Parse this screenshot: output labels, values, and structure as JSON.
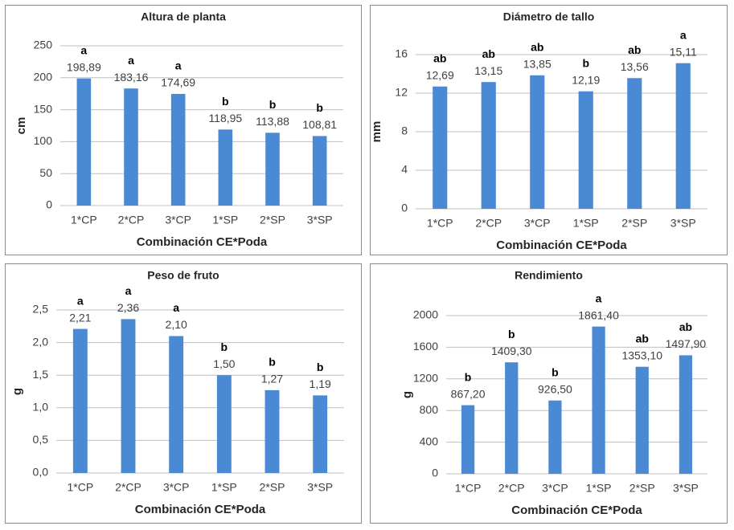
{
  "chart_data": [
    {
      "type": "bar",
      "title": "Altura de planta",
      "y_label": "cm",
      "x_label": "Combinación CE*Poda",
      "categories": [
        "1*CP",
        "2*CP",
        "3*CP",
        "1*SP",
        "2*SP",
        "3*SP"
      ],
      "values": [
        198.89,
        183.16,
        174.69,
        118.95,
        113.88,
        108.81
      ],
      "value_labels": [
        "198,89",
        "183,16",
        "174,69",
        "118,95",
        "113,88",
        "108,81"
      ],
      "annotations": [
        "a",
        "a",
        "a",
        "b",
        "b",
        "b"
      ],
      "color": "#4a89d4",
      "ylim": [
        0,
        250
      ],
      "yticks": [
        0,
        50,
        100,
        150,
        200,
        250
      ],
      "grid": true
    },
    {
      "type": "bar",
      "title": "Diámetro de tallo",
      "y_label": "mm",
      "x_label": "Combinación CE*Poda",
      "categories": [
        "1*CP",
        "2*CP",
        "3*CP",
        "1*SP",
        "2*SP",
        "3*SP"
      ],
      "values": [
        12.69,
        13.15,
        13.85,
        12.19,
        13.56,
        15.11
      ],
      "value_labels": [
        "12,69",
        "13,15",
        "13,85",
        "12,19",
        "13,56",
        "15,11"
      ],
      "annotations": [
        "ab",
        "ab",
        "ab",
        "b",
        "ab",
        "a"
      ],
      "color": "#4a89d4",
      "ylim": [
        0,
        16
      ],
      "yticks": [
        0,
        4,
        8,
        12,
        16
      ],
      "grid": true
    },
    {
      "type": "bar",
      "title": "Peso de fruto",
      "y_label": "g",
      "x_label": "Combinación CE*Poda",
      "categories": [
        "1*CP",
        "2*CP",
        "3*CP",
        "1*SP",
        "2*SP",
        "3*SP"
      ],
      "values": [
        2.21,
        2.36,
        2.1,
        1.5,
        1.27,
        1.19
      ],
      "value_labels": [
        "2,21",
        "2,36",
        "2,10",
        "1,50",
        "1,27",
        "1,19"
      ],
      "annotations": [
        "a",
        "a",
        "a",
        "b",
        "b",
        "b"
      ],
      "color": "#4a89d4",
      "ylim": [
        0,
        2.5
      ],
      "yticks": [
        {
          "value": 0,
          "label": "0,0"
        },
        {
          "value": 0.5,
          "label": "0,5"
        },
        {
          "value": 1,
          "label": "1,0"
        },
        {
          "value": 1.5,
          "label": "1,5"
        },
        {
          "value": 2,
          "label": "2,0"
        },
        {
          "value": 2.5,
          "label": "2,5"
        }
      ],
      "grid": true
    },
    {
      "type": "bar",
      "title": "Rendimiento",
      "y_label": "g",
      "x_label": "Combinación CE*Poda",
      "categories": [
        "1*CP",
        "2*CP",
        "3*CP",
        "1*SP",
        "2*SP",
        "3*SP"
      ],
      "values": [
        867.2,
        1409.3,
        926.5,
        1861.4,
        1353.1,
        1497.9
      ],
      "value_labels": [
        "867,20",
        "1409,30",
        "926,50",
        "1861,40",
        "1353,10",
        "1497,90"
      ],
      "annotations": [
        "b",
        "b",
        "b",
        "a",
        "ab",
        "ab"
      ],
      "color": "#4a89d4",
      "ylim": [
        0,
        2000
      ],
      "yticks": [
        0,
        400,
        800,
        1200,
        1600,
        2000
      ],
      "grid": true
    }
  ]
}
